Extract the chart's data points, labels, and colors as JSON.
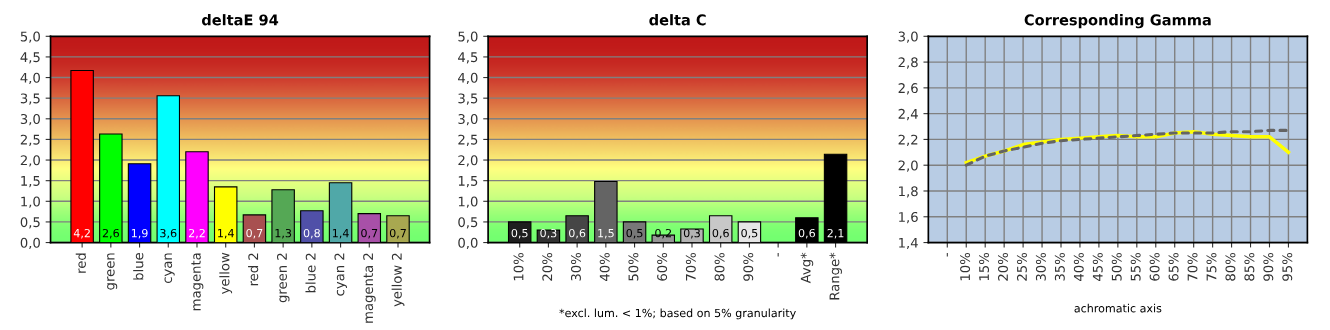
{
  "chart_data": [
    {
      "type": "bar",
      "title": "deltaE 94",
      "categories": [
        "red",
        "green",
        "blue",
        "cyan",
        "magenta",
        "yellow",
        "red 2",
        "green 2",
        "blue 2",
        "cyan 2",
        "magenta 2",
        "yellow 2"
      ],
      "values": [
        4.17,
        2.63,
        1.91,
        3.56,
        2.2,
        1.35,
        0.67,
        1.28,
        0.77,
        1.45,
        0.7,
        0.65
      ],
      "colors": [
        "#ff0000",
        "#00ff00",
        "#0000ff",
        "#00ffff",
        "#ff00ff",
        "#ffff00",
        "#a85050",
        "#55a855",
        "#5050a8",
        "#50a8a8",
        "#a850a8",
        "#a8a850"
      ],
      "value_labels": [
        "4,2",
        "2,6",
        "1,9",
        "3,6",
        "2,2",
        "1,4",
        "0,7",
        "1,3",
        "0,8",
        "1,4",
        "0,7",
        "0,7"
      ],
      "ylim": [
        0,
        5
      ],
      "yticks": [
        {
          "value": 0,
          "label": "0,0"
        },
        {
          "value": 0.5,
          "label": "0,5"
        },
        {
          "value": 1,
          "label": "1,0"
        },
        {
          "value": 1.5,
          "label": "1,5"
        },
        {
          "value": 2,
          "label": "2,0"
        },
        {
          "value": 2.5,
          "label": "2,5"
        },
        {
          "value": 3,
          "label": "3,0"
        },
        {
          "value": 3.5,
          "label": "3,5"
        },
        {
          "value": 4,
          "label": "4,0"
        },
        {
          "value": 4.5,
          "label": "4,5"
        },
        {
          "value": 5,
          "label": "5,0"
        }
      ],
      "grid": "y"
    },
    {
      "type": "bar",
      "title": "delta C",
      "categories": [
        "10%",
        "20%",
        "30%",
        "40%",
        "50%",
        "60%",
        "70%",
        "80%",
        "90%",
        "-",
        "Avg*",
        "Range*"
      ],
      "values": [
        0.5,
        0.3,
        0.65,
        1.48,
        0.5,
        0.18,
        0.33,
        0.65,
        0.5,
        null,
        0.6,
        2.14
      ],
      "colors": [
        "#1e1e1e",
        "#323232",
        "#464646",
        "#646464",
        "#787878",
        "#969696",
        "#b4b4b4",
        "#c8c8c8",
        "#e6e6e6",
        "#000000",
        "#000000",
        "#000000"
      ],
      "value_labels": [
        "0,5",
        "0,3",
        "0,6",
        "1,5",
        "0,5",
        "0,2",
        "0,3",
        "0,6",
        "0,5",
        null,
        "0,6",
        "2,1"
      ],
      "ylim": [
        0,
        5
      ],
      "yticks": [
        {
          "value": 0,
          "label": "0,0"
        },
        {
          "value": 0.5,
          "label": "0,5"
        },
        {
          "value": 1,
          "label": "1,0"
        },
        {
          "value": 1.5,
          "label": "1,5"
        },
        {
          "value": 2,
          "label": "2,0"
        },
        {
          "value": 2.5,
          "label": "2,5"
        },
        {
          "value": 3,
          "label": "3,0"
        },
        {
          "value": 3.5,
          "label": "3,5"
        },
        {
          "value": 4,
          "label": "4,0"
        },
        {
          "value": 4.5,
          "label": "4,5"
        },
        {
          "value": 5,
          "label": "5,0"
        }
      ],
      "annotations": [
        "*excl. lum. < 1%; based on 5% granularity"
      ],
      "grid": "y"
    },
    {
      "type": "line",
      "title": "Corresponding Gamma",
      "xlabel": "achromatic axis",
      "categories": [
        "-",
        "10%",
        "15%",
        "20%",
        "25%",
        "30%",
        "35%",
        "40%",
        "45%",
        "50%",
        "55%",
        "60%",
        "65%",
        "70%",
        "75%",
        "80%",
        "85%",
        "90%",
        "95%"
      ],
      "series": [
        {
          "color": "#ffff00",
          "line_style": "solid",
          "values": [
            null,
            2.02,
            2.07,
            2.11,
            2.16,
            2.18,
            2.2,
            2.21,
            2.22,
            2.23,
            2.22,
            2.22,
            2.25,
            2.26,
            2.24,
            2.23,
            2.22,
            2.22,
            2.1
          ]
        },
        {
          "color": "#646464",
          "line_style": "dashed",
          "values": [
            null,
            2.0,
            2.07,
            2.11,
            2.14,
            2.17,
            2.19,
            2.2,
            2.21,
            2.22,
            2.23,
            2.24,
            2.25,
            2.25,
            2.25,
            2.26,
            2.26,
            2.27,
            2.27
          ]
        }
      ],
      "ylim": [
        1.4,
        3.0
      ],
      "yticks": [
        {
          "value": 1.4,
          "label": "1,4"
        },
        {
          "value": 1.6,
          "label": "1,6"
        },
        {
          "value": 1.8,
          "label": "1,8"
        },
        {
          "value": 2.0,
          "label": "2,0"
        },
        {
          "value": 2.2,
          "label": "2,2"
        },
        {
          "value": 2.4,
          "label": "2,4"
        },
        {
          "value": 2.6,
          "label": "2,6"
        },
        {
          "value": 2.8,
          "label": "2,8"
        },
        {
          "value": 3.0,
          "label": "3,0"
        }
      ],
      "grid": true
    }
  ]
}
